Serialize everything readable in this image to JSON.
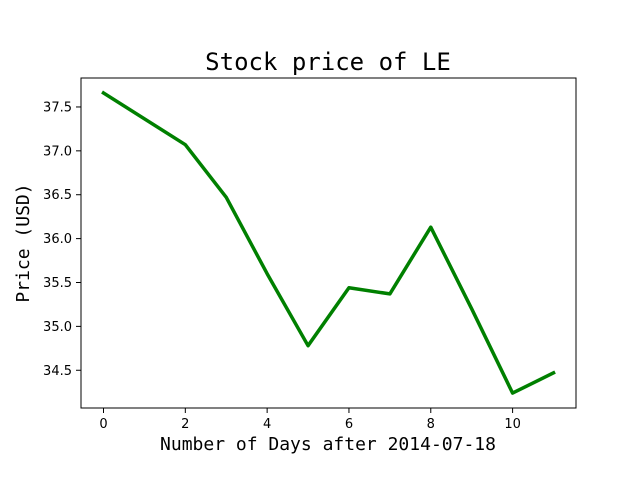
{
  "chart_data": {
    "type": "line",
    "title": "Stock price of LE",
    "xlabel": "Number of Days after 2014-07-18",
    "ylabel": "Price (USD)",
    "x": [
      0,
      2,
      3,
      4,
      5,
      6,
      7,
      8,
      9,
      10,
      11
    ],
    "series": [
      {
        "values": [
          37.66,
          37.07,
          36.47,
          35.6,
          34.78,
          35.44,
          35.37,
          36.13,
          35.2,
          34.24,
          34.47
        ],
        "color": "#008000"
      }
    ],
    "xlim": [
      -0.55,
      11.55
    ],
    "ylim": [
      34.07,
      37.83
    ],
    "xticks": [
      0,
      2,
      4,
      6,
      8,
      10
    ],
    "xtick_labels": [
      "0",
      "2",
      "4",
      "6",
      "8",
      "10"
    ],
    "yticks": [
      34.5,
      35.0,
      35.5,
      36.0,
      36.5,
      37.0,
      37.5
    ],
    "ytick_labels": [
      "34.5",
      "35.0",
      "35.5",
      "36.0",
      "36.5",
      "37.0",
      "37.5"
    ],
    "grid": false
  }
}
